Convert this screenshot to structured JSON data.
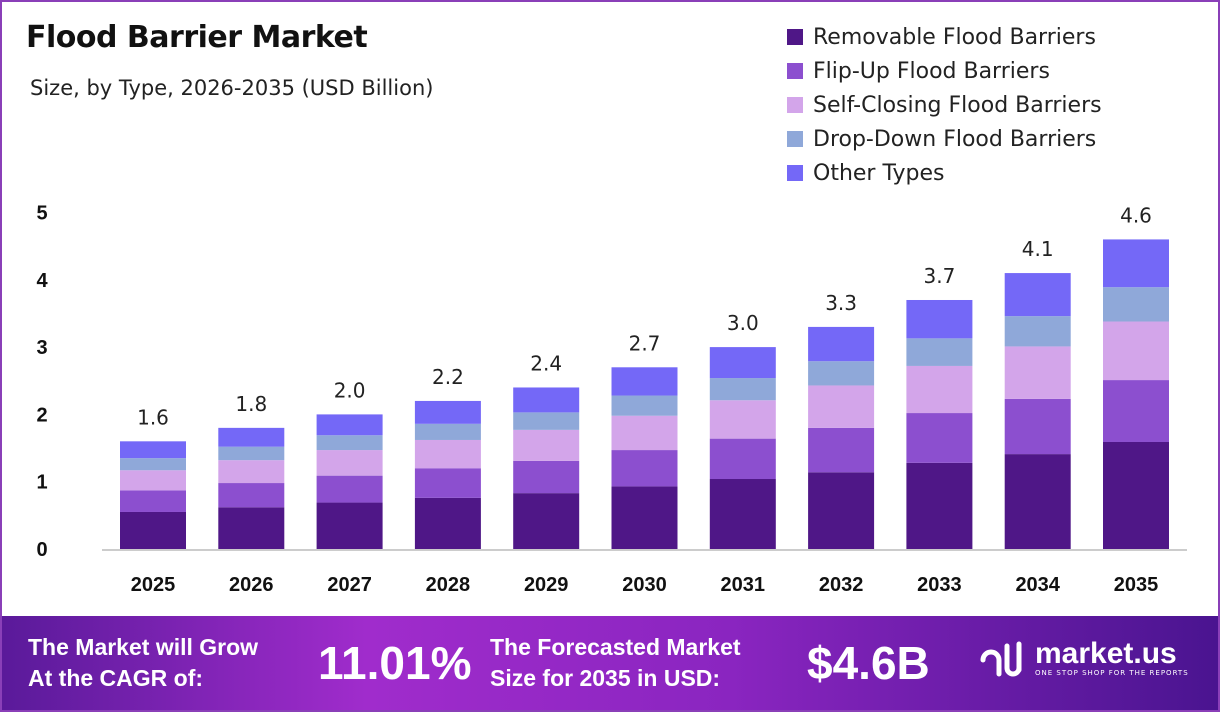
{
  "chart_data": {
    "type": "bar",
    "stacked": true,
    "title": "Flood Barrier Market",
    "subtitle": "Size, by Type, 2026-2035 (USD Billion)",
    "categories": [
      "2025",
      "2026",
      "2027",
      "2028",
      "2029",
      "2030",
      "2031",
      "2032",
      "2033",
      "2034",
      "2035"
    ],
    "totals": [
      "1.6",
      "1.8",
      "2.0",
      "2.2",
      "2.4",
      "2.7",
      "3.0",
      "3.3",
      "3.7",
      "4.1",
      "4.6"
    ],
    "series": [
      {
        "name": "Removable Flood Barriers",
        "color": "#4f1787",
        "values": [
          0.55,
          0.62,
          0.69,
          0.76,
          0.83,
          0.93,
          1.04,
          1.14,
          1.28,
          1.41,
          1.59
        ]
      },
      {
        "name": "Flip-Up Flood Barriers",
        "color": "#8c4fcf",
        "values": [
          0.32,
          0.36,
          0.4,
          0.44,
          0.48,
          0.54,
          0.6,
          0.66,
          0.74,
          0.82,
          0.92
        ]
      },
      {
        "name": "Self-Closing Flood Barriers",
        "color": "#d3a5ea",
        "values": [
          0.3,
          0.34,
          0.38,
          0.42,
          0.46,
          0.51,
          0.57,
          0.63,
          0.7,
          0.78,
          0.87
        ]
      },
      {
        "name": "Drop-Down Flood Barriers",
        "color": "#8fa8d9",
        "values": [
          0.18,
          0.2,
          0.22,
          0.24,
          0.26,
          0.3,
          0.33,
          0.36,
          0.41,
          0.45,
          0.51
        ]
      },
      {
        "name": "Other Types",
        "color": "#7468f7",
        "values": [
          0.25,
          0.28,
          0.31,
          0.34,
          0.37,
          0.42,
          0.46,
          0.51,
          0.57,
          0.64,
          0.71
        ]
      }
    ],
    "yticks": [
      "0",
      "1",
      "2",
      "3",
      "4",
      "5"
    ],
    "ylim": [
      0,
      5
    ],
    "grid": false,
    "legend": "top-right"
  },
  "footer": {
    "cagr_label_1": "The Market will Grow",
    "cagr_label_2": "At the CAGR of:",
    "cagr_value": "11.01%",
    "size_label_1": "The Forecasted Market",
    "size_label_2": "Size for 2035 in USD:",
    "size_value": "$4.6B",
    "logo_text": "market.us",
    "logo_tagline": "ONE STOP SHOP FOR THE REPORTS"
  }
}
